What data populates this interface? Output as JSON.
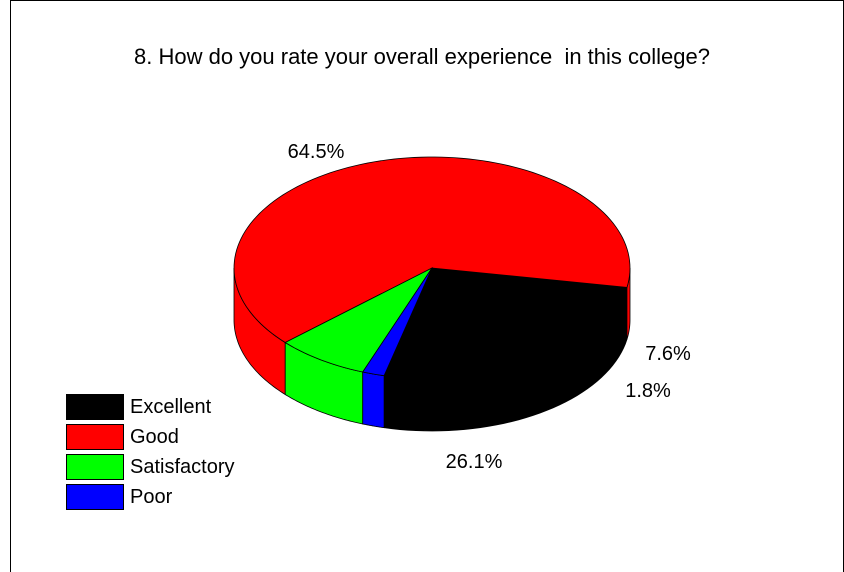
{
  "chart_data": {
    "type": "pie",
    "title": "8. How do you rate your overall experience  in this college?",
    "slices": [
      {
        "name": "Excellent",
        "value": 26.1,
        "label": "26.1%",
        "color": "#000000"
      },
      {
        "name": "Good",
        "value": 64.5,
        "label": "64.5%",
        "color": "#ff0000"
      },
      {
        "name": "Satisfactory",
        "value": 7.6,
        "label": "7.6%",
        "color": "#00ff00"
      },
      {
        "name": "Poor",
        "value": 1.8,
        "label": "1.8%",
        "color": "#0000ff"
      }
    ],
    "legend_position": "bottom-left",
    "style": "3d"
  }
}
